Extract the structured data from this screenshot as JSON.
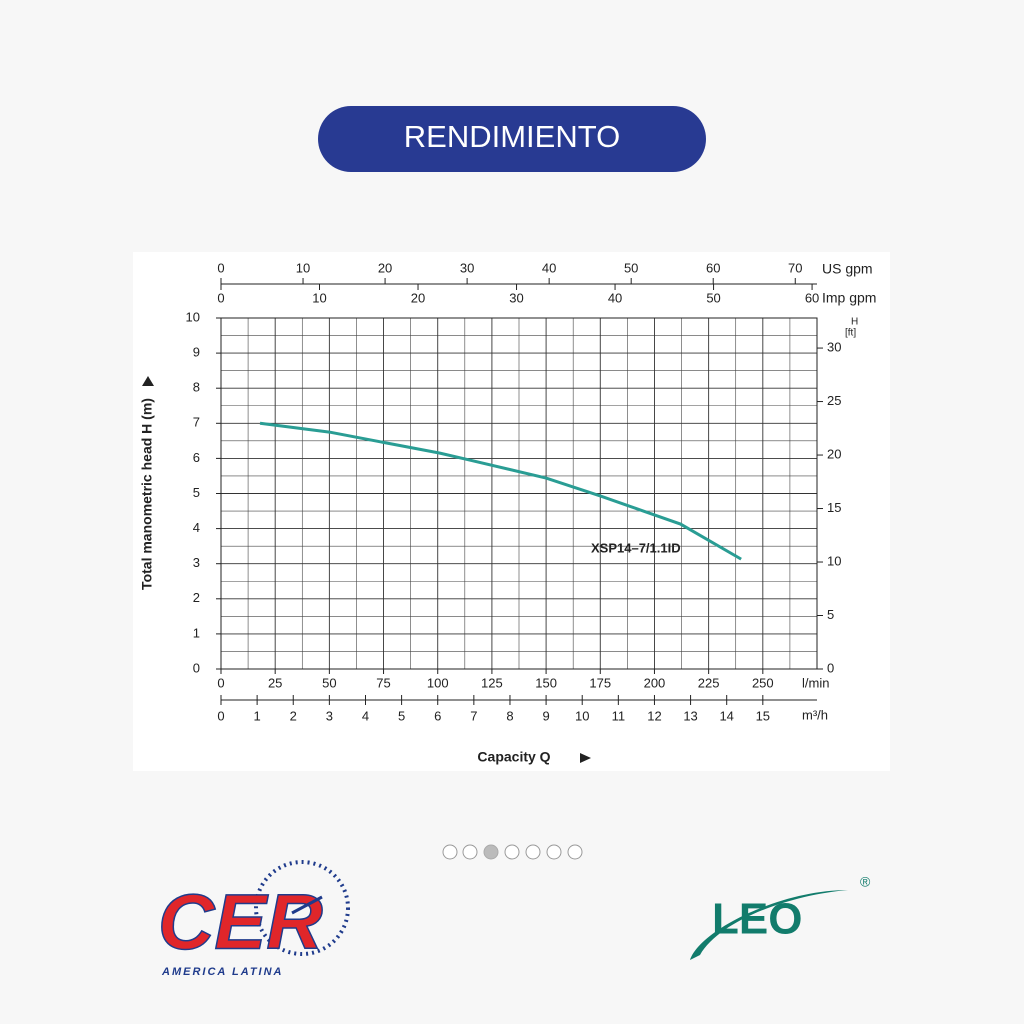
{
  "header": {
    "button": "RENDIMIENTO"
  },
  "chart_data": {
    "type": "line",
    "x_label": "Capacity Q",
    "y_label": "Total manometric head H (m)",
    "x_unit": "l/min",
    "x": [
      18,
      50,
      101,
      115,
      150,
      175,
      212,
      240
    ],
    "series": [
      {
        "name": "XSP14–7/1.1ID",
        "color": "#2a9d94",
        "values": [
          7.0,
          6.75,
          6.15,
          5.95,
          5.44,
          4.93,
          4.13,
          3.13
        ]
      }
    ],
    "xlim": [
      0,
      275
    ],
    "xticks": [
      0,
      25,
      50,
      75,
      100,
      125,
      150,
      175,
      200,
      225,
      250
    ],
    "ylim": [
      0,
      10
    ],
    "yticks": [
      0,
      1,
      2,
      3,
      4,
      5,
      6,
      7,
      8,
      9,
      10
    ],
    "grid": true,
    "x2": {
      "unit": "m³/h",
      "lim": [
        0,
        16.5
      ],
      "ticks": [
        0,
        1,
        2,
        3,
        4,
        5,
        6,
        7,
        8,
        9,
        10,
        11,
        12,
        13,
        14,
        15
      ]
    },
    "x_top": {
      "unit": "US gpm",
      "lim": [
        0,
        72.65
      ],
      "ticks": [
        0,
        10,
        20,
        30,
        40,
        50,
        60,
        70
      ]
    },
    "x_top2": {
      "unit": "Imp gpm",
      "lim": [
        0,
        60.5
      ],
      "ticks": [
        0,
        10,
        20,
        30,
        40,
        50,
        60
      ]
    },
    "y2": {
      "label": "H",
      "unit": "[ft]",
      "lim": [
        0,
        32.81
      ],
      "ticks": [
        0,
        5,
        10,
        15,
        20,
        25,
        30
      ]
    }
  },
  "logos": {
    "left": "CER",
    "left_sub": "AMERICA LATINA",
    "right": "LEO",
    "right_mark": "®"
  }
}
